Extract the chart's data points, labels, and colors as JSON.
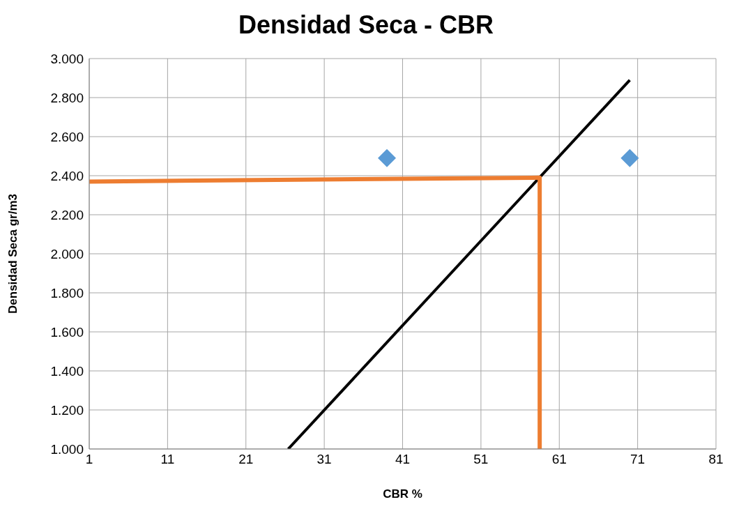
{
  "chart_data": {
    "type": "scatter",
    "title": "Densidad Seca - CBR",
    "xlabel": "CBR %",
    "ylabel": "Densidad Seca gr/m3",
    "xlim": [
      1,
      81
    ],
    "xticks": [
      1,
      11,
      21,
      31,
      41,
      51,
      61,
      71,
      81
    ],
    "ylim": [
      1,
      3
    ],
    "yticks": [
      {
        "value": 1,
        "label": "1.000"
      },
      {
        "value": 1.2,
        "label": "1.200"
      },
      {
        "value": 1.4,
        "label": "1.400"
      },
      {
        "value": 1.6,
        "label": "1.600"
      },
      {
        "value": 1.8,
        "label": "1.800"
      },
      {
        "value": 2,
        "label": "2.000"
      },
      {
        "value": 2.2,
        "label": "2.200"
      },
      {
        "value": 2.4,
        "label": "2.400"
      },
      {
        "value": 2.6,
        "label": "2.600"
      },
      {
        "value": 2.8,
        "label": "2.800"
      },
      {
        "value": 3,
        "label": "3.000"
      }
    ],
    "grid": true,
    "series": [
      {
        "type": "scatter",
        "color": "#5b9bd5",
        "marker": "diamond",
        "x": [
          39,
          70
        ],
        "values": [
          2.49,
          2.49
        ]
      },
      {
        "type": "line",
        "color": "#000000",
        "marker": "none",
        "x": [
          26.4,
          70
        ],
        "values": [
          1,
          2.89
        ]
      },
      {
        "type": "line",
        "color": "#ed7d31",
        "marker": "none",
        "x": [
          1,
          58.5,
          58.5
        ],
        "values": [
          2.37,
          2.39,
          1
        ]
      }
    ]
  }
}
